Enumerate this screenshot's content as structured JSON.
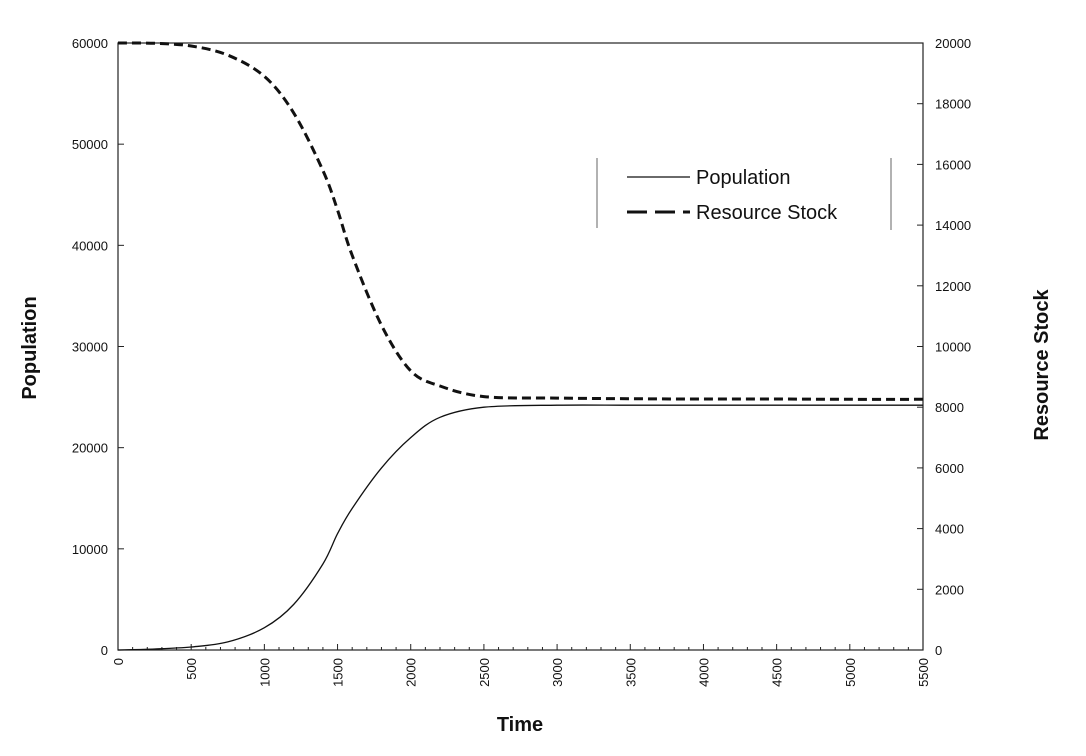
{
  "chart_data": {
    "type": "line",
    "title": "",
    "xlabel": "Time",
    "ylabel": "Population",
    "y2label": "Resource Stock",
    "xlim": [
      0,
      5500
    ],
    "ylim": [
      0,
      60000
    ],
    "y2lim": [
      0,
      20000
    ],
    "x_ticks": [
      0,
      500,
      1000,
      1500,
      2000,
      2500,
      3000,
      3500,
      4000,
      4500,
      5000,
      5500
    ],
    "y_ticks": [
      0,
      10000,
      20000,
      30000,
      40000,
      50000,
      60000
    ],
    "y2_ticks": [
      0,
      2000,
      4000,
      6000,
      8000,
      10000,
      12000,
      14000,
      16000,
      18000,
      20000
    ],
    "grid": false,
    "legend_position": "upper-right",
    "series": [
      {
        "name": "Population",
        "axis": "left",
        "style": "solid",
        "color": "#111111",
        "x": [
          0,
          250,
          500,
          750,
          1000,
          1200,
          1400,
          1500,
          1600,
          1800,
          2000,
          2200,
          2500,
          3000,
          3500,
          4000,
          4500,
          5000,
          5500
        ],
        "values": [
          0,
          100,
          300,
          800,
          2200,
          4500,
          8500,
          11500,
          14000,
          18000,
          21000,
          23000,
          24000,
          24200,
          24200,
          24200,
          24200,
          24200,
          24200
        ]
      },
      {
        "name": "Resource Stock",
        "axis": "right",
        "style": "dashed",
        "color": "#111111",
        "x": [
          0,
          250,
          500,
          750,
          1000,
          1200,
          1400,
          1500,
          1600,
          1800,
          2000,
          2200,
          2500,
          3000,
          3500,
          4000,
          4500,
          5000,
          5500
        ],
        "values": [
          20000,
          19990,
          19900,
          19600,
          18900,
          17700,
          15800,
          14500,
          13000,
          10700,
          9200,
          8700,
          8350,
          8300,
          8280,
          8270,
          8270,
          8260,
          8260
        ]
      }
    ]
  }
}
